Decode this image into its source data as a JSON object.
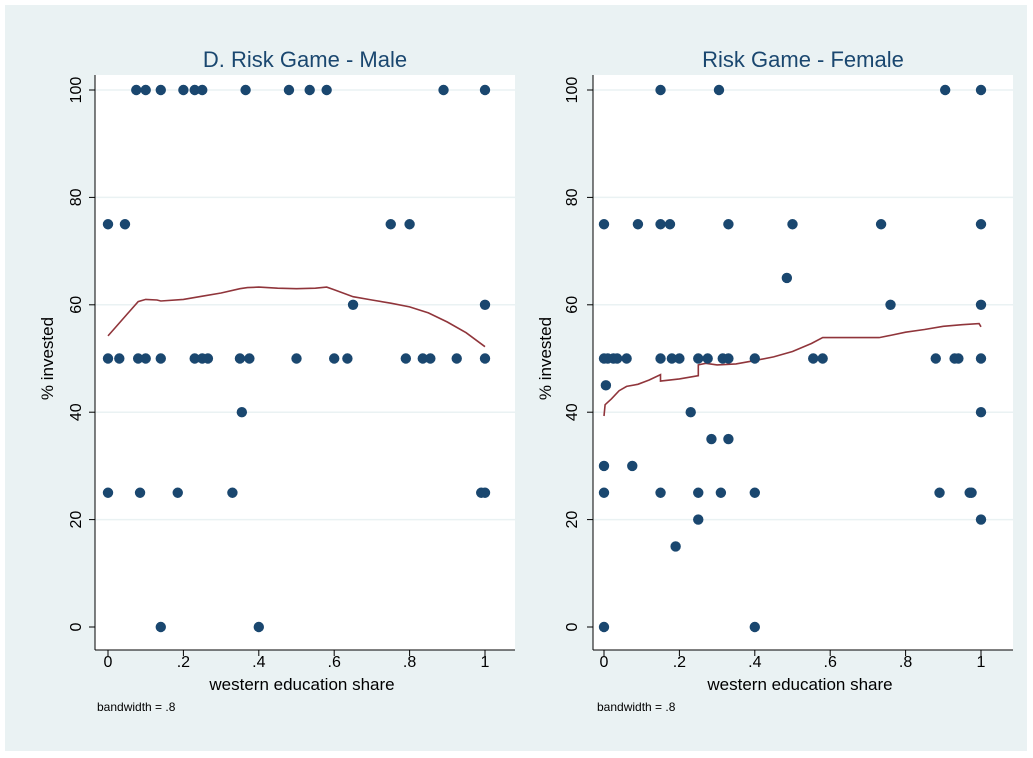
{
  "colors": {
    "background": "#eaf2f3",
    "plot_region": "#ffffff",
    "marker": "#1a476f",
    "smooth_line": "#90353b",
    "title": "#1a476f"
  },
  "chart_data": [
    {
      "type": "scatter",
      "title": "D. Risk Game - Male",
      "xlabel": "western education share",
      "ylabel": "% invested",
      "xlim": [
        0,
        1
      ],
      "ylim": [
        0,
        100
      ],
      "xticks": [
        0,
        0.2,
        0.4,
        0.6,
        0.8,
        1
      ],
      "xtick_labels": [
        "0",
        ".2",
        ".4",
        ".6",
        ".8",
        "1"
      ],
      "yticks": [
        0,
        20,
        40,
        60,
        80,
        100
      ],
      "ytick_labels": [
        "0",
        "20",
        "40",
        "60",
        "80",
        "100"
      ],
      "grid": true,
      "note": "bandwidth = .8",
      "points": [
        {
          "x": 0.0,
          "y": 75
        },
        {
          "x": 0.0,
          "y": 50
        },
        {
          "x": 0.0,
          "y": 25
        },
        {
          "x": 0.03,
          "y": 50
        },
        {
          "x": 0.045,
          "y": 75
        },
        {
          "x": 0.075,
          "y": 100
        },
        {
          "x": 0.08,
          "y": 50
        },
        {
          "x": 0.085,
          "y": 25
        },
        {
          "x": 0.1,
          "y": 100
        },
        {
          "x": 0.1,
          "y": 50
        },
        {
          "x": 0.14,
          "y": 100
        },
        {
          "x": 0.14,
          "y": 50
        },
        {
          "x": 0.14,
          "y": 0
        },
        {
          "x": 0.185,
          "y": 25
        },
        {
          "x": 0.2,
          "y": 100
        },
        {
          "x": 0.23,
          "y": 100
        },
        {
          "x": 0.23,
          "y": 50
        },
        {
          "x": 0.25,
          "y": 100
        },
        {
          "x": 0.25,
          "y": 50
        },
        {
          "x": 0.265,
          "y": 50
        },
        {
          "x": 0.33,
          "y": 25
        },
        {
          "x": 0.35,
          "y": 50
        },
        {
          "x": 0.355,
          "y": 40
        },
        {
          "x": 0.365,
          "y": 100
        },
        {
          "x": 0.375,
          "y": 50
        },
        {
          "x": 0.4,
          "y": 0
        },
        {
          "x": 0.48,
          "y": 100
        },
        {
          "x": 0.5,
          "y": 50
        },
        {
          "x": 0.535,
          "y": 100
        },
        {
          "x": 0.58,
          "y": 100
        },
        {
          "x": 0.6,
          "y": 50
        },
        {
          "x": 0.635,
          "y": 50
        },
        {
          "x": 0.65,
          "y": 60
        },
        {
          "x": 0.75,
          "y": 75
        },
        {
          "x": 0.79,
          "y": 50
        },
        {
          "x": 0.8,
          "y": 75
        },
        {
          "x": 0.835,
          "y": 50
        },
        {
          "x": 0.855,
          "y": 50
        },
        {
          "x": 0.89,
          "y": 100
        },
        {
          "x": 0.925,
          "y": 50
        },
        {
          "x": 0.99,
          "y": 25
        },
        {
          "x": 1.0,
          "y": 100
        },
        {
          "x": 1.0,
          "y": 60
        },
        {
          "x": 1.0,
          "y": 50
        },
        {
          "x": 1.0,
          "y": 25
        }
      ],
      "smooth_line": [
        {
          "x": 0.0,
          "y": 54.2
        },
        {
          "x": 0.02,
          "y": 55.8
        },
        {
          "x": 0.05,
          "y": 58.2
        },
        {
          "x": 0.08,
          "y": 60.6
        },
        {
          "x": 0.1,
          "y": 61.0
        },
        {
          "x": 0.13,
          "y": 60.9
        },
        {
          "x": 0.14,
          "y": 60.7
        },
        {
          "x": 0.2,
          "y": 61.0
        },
        {
          "x": 0.25,
          "y": 61.6
        },
        {
          "x": 0.3,
          "y": 62.2
        },
        {
          "x": 0.35,
          "y": 63.0
        },
        {
          "x": 0.37,
          "y": 63.2
        },
        {
          "x": 0.4,
          "y": 63.3
        },
        {
          "x": 0.45,
          "y": 63.1
        },
        {
          "x": 0.5,
          "y": 63.0
        },
        {
          "x": 0.55,
          "y": 63.1
        },
        {
          "x": 0.58,
          "y": 63.3
        },
        {
          "x": 0.6,
          "y": 62.8
        },
        {
          "x": 0.65,
          "y": 61.5
        },
        {
          "x": 0.7,
          "y": 60.9
        },
        {
          "x": 0.75,
          "y": 60.3
        },
        {
          "x": 0.8,
          "y": 59.6
        },
        {
          "x": 0.85,
          "y": 58.5
        },
        {
          "x": 0.9,
          "y": 56.8
        },
        {
          "x": 0.95,
          "y": 54.8
        },
        {
          "x": 1.0,
          "y": 52.2
        }
      ]
    },
    {
      "type": "scatter",
      "title": "Risk Game - Female",
      "xlabel": "western education share",
      "ylabel": "% invested",
      "xlim": [
        0,
        1
      ],
      "ylim": [
        0,
        100
      ],
      "xticks": [
        0,
        0.2,
        0.4,
        0.6,
        0.8,
        1
      ],
      "xtick_labels": [
        "0",
        ".2",
        ".4",
        ".6",
        ".8",
        "1"
      ],
      "yticks": [
        0,
        20,
        40,
        60,
        80,
        100
      ],
      "ytick_labels": [
        "0",
        "20",
        "40",
        "60",
        "80",
        "100"
      ],
      "grid": true,
      "note": "bandwidth = .8",
      "points": [
        {
          "x": 0.0,
          "y": 75
        },
        {
          "x": 0.0,
          "y": 50
        },
        {
          "x": 0.005,
          "y": 45
        },
        {
          "x": 0.0,
          "y": 30
        },
        {
          "x": 0.0,
          "y": 25
        },
        {
          "x": 0.0,
          "y": 0
        },
        {
          "x": 0.01,
          "y": 50
        },
        {
          "x": 0.025,
          "y": 50
        },
        {
          "x": 0.035,
          "y": 50
        },
        {
          "x": 0.06,
          "y": 50
        },
        {
          "x": 0.075,
          "y": 30
        },
        {
          "x": 0.09,
          "y": 75
        },
        {
          "x": 0.15,
          "y": 100
        },
        {
          "x": 0.15,
          "y": 75
        },
        {
          "x": 0.15,
          "y": 50
        },
        {
          "x": 0.15,
          "y": 25
        },
        {
          "x": 0.175,
          "y": 75
        },
        {
          "x": 0.18,
          "y": 50
        },
        {
          "x": 0.19,
          "y": 15
        },
        {
          "x": 0.2,
          "y": 50
        },
        {
          "x": 0.23,
          "y": 40
        },
        {
          "x": 0.25,
          "y": 50
        },
        {
          "x": 0.25,
          "y": 25
        },
        {
          "x": 0.25,
          "y": 20
        },
        {
          "x": 0.275,
          "y": 50
        },
        {
          "x": 0.285,
          "y": 35
        },
        {
          "x": 0.305,
          "y": 100
        },
        {
          "x": 0.31,
          "y": 25
        },
        {
          "x": 0.315,
          "y": 50
        },
        {
          "x": 0.33,
          "y": 75
        },
        {
          "x": 0.33,
          "y": 50
        },
        {
          "x": 0.33,
          "y": 35
        },
        {
          "x": 0.4,
          "y": 50
        },
        {
          "x": 0.4,
          "y": 25
        },
        {
          "x": 0.4,
          "y": 0
        },
        {
          "x": 0.485,
          "y": 65
        },
        {
          "x": 0.5,
          "y": 75
        },
        {
          "x": 0.555,
          "y": 50
        },
        {
          "x": 0.58,
          "y": 50
        },
        {
          "x": 0.735,
          "y": 75
        },
        {
          "x": 0.76,
          "y": 60
        },
        {
          "x": 0.88,
          "y": 50
        },
        {
          "x": 0.89,
          "y": 25
        },
        {
          "x": 0.905,
          "y": 100
        },
        {
          "x": 0.93,
          "y": 50
        },
        {
          "x": 0.94,
          "y": 50
        },
        {
          "x": 0.97,
          "y": 25
        },
        {
          "x": 0.975,
          "y": 25
        },
        {
          "x": 1.0,
          "y": 100
        },
        {
          "x": 1.0,
          "y": 75
        },
        {
          "x": 1.0,
          "y": 60
        },
        {
          "x": 1.0,
          "y": 50
        },
        {
          "x": 1.0,
          "y": 40
        },
        {
          "x": 1.0,
          "y": 20
        }
      ],
      "smooth_line": [
        {
          "x": 0.0,
          "y": 39.3
        },
        {
          "x": 0.003,
          "y": 41.4
        },
        {
          "x": 0.02,
          "y": 42.5
        },
        {
          "x": 0.04,
          "y": 44.0
        },
        {
          "x": 0.06,
          "y": 44.8
        },
        {
          "x": 0.09,
          "y": 45.2
        },
        {
          "x": 0.12,
          "y": 46.0
        },
        {
          "x": 0.15,
          "y": 47.0
        },
        {
          "x": 0.15,
          "y": 45.8
        },
        {
          "x": 0.2,
          "y": 46.2
        },
        {
          "x": 0.25,
          "y": 46.8
        },
        {
          "x": 0.25,
          "y": 48.8
        },
        {
          "x": 0.27,
          "y": 49.1
        },
        {
          "x": 0.3,
          "y": 48.8
        },
        {
          "x": 0.35,
          "y": 49.0
        },
        {
          "x": 0.4,
          "y": 49.6
        },
        {
          "x": 0.45,
          "y": 50.3
        },
        {
          "x": 0.5,
          "y": 51.3
        },
        {
          "x": 0.55,
          "y": 52.8
        },
        {
          "x": 0.58,
          "y": 53.9
        },
        {
          "x": 0.65,
          "y": 53.9
        },
        {
          "x": 0.73,
          "y": 53.9
        },
        {
          "x": 0.76,
          "y": 54.3
        },
        {
          "x": 0.8,
          "y": 54.9
        },
        {
          "x": 0.85,
          "y": 55.4
        },
        {
          "x": 0.9,
          "y": 56.0
        },
        {
          "x": 0.95,
          "y": 56.3
        },
        {
          "x": 0.995,
          "y": 56.5
        },
        {
          "x": 1.0,
          "y": 55.9
        }
      ]
    }
  ]
}
